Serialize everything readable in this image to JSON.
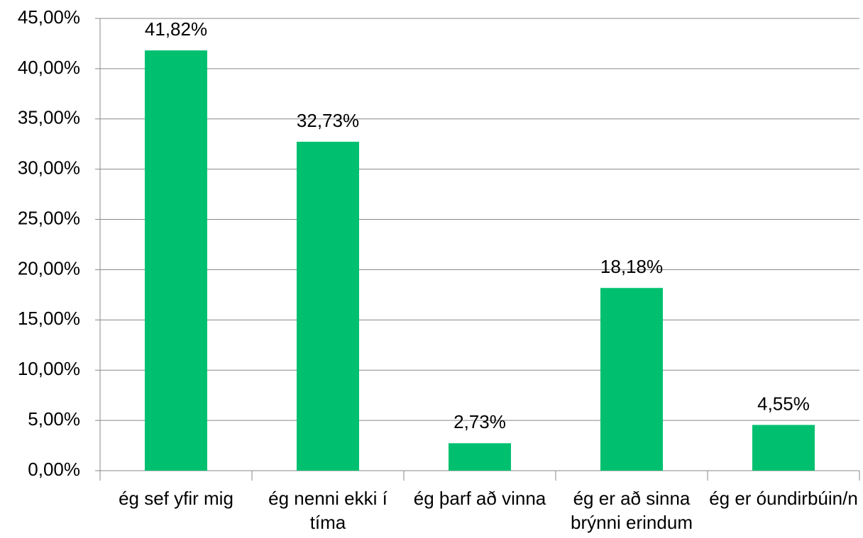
{
  "chart_data": {
    "type": "bar",
    "categories": [
      "ég sef yfir mig",
      "ég nenni ekki í tíma",
      "ég þarf að vinna",
      "ég er að sinna brýnni erindum",
      "ég er óundirbúin/n"
    ],
    "values": [
      41.82,
      32.73,
      2.73,
      18.18,
      4.55
    ],
    "value_labels": [
      "41,82%",
      "32,73%",
      "2,73%",
      "18,18%",
      "4,55%"
    ],
    "color": "#00c070",
    "ylim": [
      0,
      45
    ],
    "yticks": [
      {
        "value": 0,
        "label": "0,00%"
      },
      {
        "value": 5,
        "label": "5,00%"
      },
      {
        "value": 10,
        "label": "10,00%"
      },
      {
        "value": 15,
        "label": "15,00%"
      },
      {
        "value": 20,
        "label": "20,00%"
      },
      {
        "value": 25,
        "label": "25,00%"
      },
      {
        "value": 30,
        "label": "30,00%"
      },
      {
        "value": 35,
        "label": "35,00%"
      },
      {
        "value": 40,
        "label": "40,00%"
      },
      {
        "value": 45,
        "label": "45,00%"
      }
    ],
    "grid": true
  }
}
